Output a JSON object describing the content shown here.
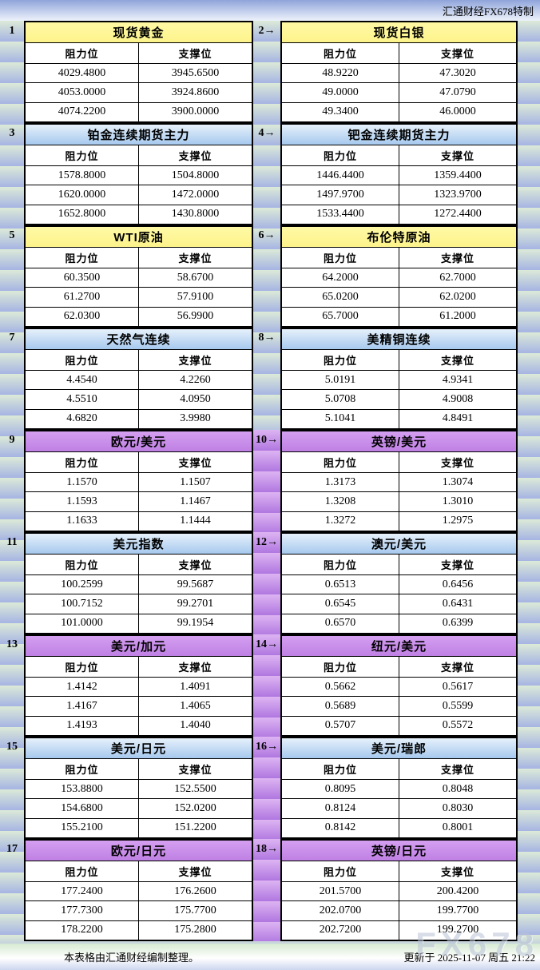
{
  "header": {
    "brand": "汇通财经FX678特制"
  },
  "footer": {
    "left": "本表格由汇通财经编制整理。",
    "right": "更新于 2025-11-07 周五 21:22"
  },
  "watermark": "FX678",
  "colors": {
    "stripe_light": "#dcead8",
    "stripe_blue": "#a6b4e3",
    "purple_stripe_light": "#ddb4f2",
    "purple_stripe_dark": "#b077e0",
    "title_yellow": "#fdf38c",
    "title_blue": "#a6c9ee",
    "title_purple": "#bf80e3",
    "watermark_gray": "#b9c3d6"
  },
  "chart_data": {
    "type": "table",
    "title": "汇通财经FX678特制 阻力位/支撑位表",
    "columns": [
      "阻力位",
      "支撑位"
    ],
    "tables": [
      {
        "num": "1",
        "title": "现货黄金",
        "color": "yellow",
        "rows": [
          [
            "4029.4800",
            "3945.6500"
          ],
          [
            "4053.0000",
            "3924.8600"
          ],
          [
            "4074.2200",
            "3900.0000"
          ]
        ]
      },
      {
        "num": "2→",
        "title": "现货白银",
        "color": "yellow",
        "rows": [
          [
            "48.9220",
            "47.3020"
          ],
          [
            "49.0000",
            "47.0790"
          ],
          [
            "49.3400",
            "46.0000"
          ]
        ]
      },
      {
        "num": "3",
        "title": "铂金连续期货主力",
        "color": "blue",
        "rows": [
          [
            "1578.8000",
            "1504.8000"
          ],
          [
            "1620.0000",
            "1472.0000"
          ],
          [
            "1652.8000",
            "1430.8000"
          ]
        ]
      },
      {
        "num": "4→",
        "title": "钯金连续期货主力",
        "color": "blue",
        "rows": [
          [
            "1446.4400",
            "1359.4400"
          ],
          [
            "1497.9700",
            "1323.9700"
          ],
          [
            "1533.4400",
            "1272.4400"
          ]
        ]
      },
      {
        "num": "5",
        "title": "WTI原油",
        "color": "yellow",
        "rows": [
          [
            "60.3500",
            "58.6700"
          ],
          [
            "61.2700",
            "57.9100"
          ],
          [
            "62.0300",
            "56.9900"
          ]
        ]
      },
      {
        "num": "6→",
        "title": "布伦特原油",
        "color": "yellow",
        "rows": [
          [
            "64.2000",
            "62.7000"
          ],
          [
            "65.0200",
            "62.0200"
          ],
          [
            "65.7000",
            "61.2000"
          ]
        ]
      },
      {
        "num": "7",
        "title": "天然气连续",
        "color": "blue",
        "rows": [
          [
            "4.4540",
            "4.2260"
          ],
          [
            "4.5510",
            "4.0950"
          ],
          [
            "4.6820",
            "3.9980"
          ]
        ]
      },
      {
        "num": "8→",
        "title": "美精铜连续",
        "color": "blue",
        "rows": [
          [
            "5.0191",
            "4.9341"
          ],
          [
            "5.0708",
            "4.9008"
          ],
          [
            "5.1041",
            "4.8491"
          ]
        ]
      },
      {
        "num": "9",
        "title": "欧元/美元",
        "color": "purple",
        "rows": [
          [
            "1.1570",
            "1.1507"
          ],
          [
            "1.1593",
            "1.1467"
          ],
          [
            "1.1633",
            "1.1444"
          ]
        ]
      },
      {
        "num": "10→",
        "title": "英镑/美元",
        "color": "purple",
        "rows": [
          [
            "1.3173",
            "1.3074"
          ],
          [
            "1.3208",
            "1.3010"
          ],
          [
            "1.3272",
            "1.2975"
          ]
        ]
      },
      {
        "num": "11",
        "title": "美元指数",
        "color": "blue",
        "rows": [
          [
            "100.2599",
            "99.5687"
          ],
          [
            "100.7152",
            "99.2701"
          ],
          [
            "101.0000",
            "99.1954"
          ]
        ]
      },
      {
        "num": "12→",
        "title": "澳元/美元",
        "color": "blue",
        "rows": [
          [
            "0.6513",
            "0.6456"
          ],
          [
            "0.6545",
            "0.6431"
          ],
          [
            "0.6570",
            "0.6399"
          ]
        ]
      },
      {
        "num": "13",
        "title": "美元/加元",
        "color": "purple",
        "rows": [
          [
            "1.4142",
            "1.4091"
          ],
          [
            "1.4167",
            "1.4065"
          ],
          [
            "1.4193",
            "1.4040"
          ]
        ]
      },
      {
        "num": "14→",
        "title": "纽元/美元",
        "color": "purple",
        "rows": [
          [
            "0.5662",
            "0.5617"
          ],
          [
            "0.5689",
            "0.5599"
          ],
          [
            "0.5707",
            "0.5572"
          ]
        ]
      },
      {
        "num": "15",
        "title": "美元/日元",
        "color": "blue",
        "rows": [
          [
            "153.8800",
            "152.5500"
          ],
          [
            "154.6800",
            "152.0200"
          ],
          [
            "155.2100",
            "151.2200"
          ]
        ]
      },
      {
        "num": "16→",
        "title": "美元/瑞郎",
        "color": "blue",
        "rows": [
          [
            "0.8095",
            "0.8048"
          ],
          [
            "0.8124",
            "0.8030"
          ],
          [
            "0.8142",
            "0.8001"
          ]
        ]
      },
      {
        "num": "17",
        "title": "欧元/日元",
        "color": "purple",
        "rows": [
          [
            "177.2400",
            "176.2600"
          ],
          [
            "177.7300",
            "175.7700"
          ],
          [
            "178.2200",
            "175.2800"
          ]
        ]
      },
      {
        "num": "18→",
        "title": "英镑/日元",
        "color": "purple",
        "rows": [
          [
            "201.5700",
            "200.4200"
          ],
          [
            "202.0700",
            "199.7700"
          ],
          [
            "202.7200",
            "199.2700"
          ]
        ]
      }
    ]
  }
}
